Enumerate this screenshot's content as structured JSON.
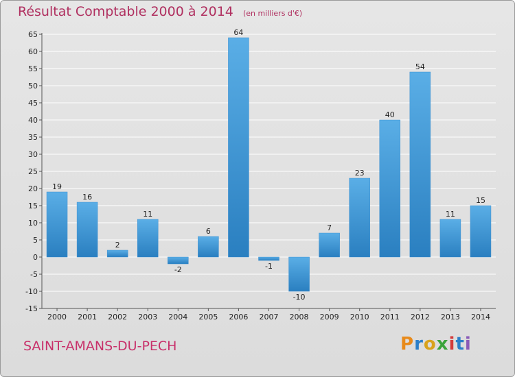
{
  "header": {
    "title": "Résultat Comptable 2000 à 2014",
    "unit": "(en milliers d'€)"
  },
  "footer": {
    "place": "SAINT-AMANS-DU-PECH",
    "logo_letters": [
      "P",
      "r",
      "o",
      "x",
      "i",
      "t",
      "i"
    ],
    "logo_colors": [
      "#e88a1a",
      "#2b7fc9",
      "#d8a21b",
      "#3aa33a",
      "#d33b3b",
      "#2b7fc9",
      "#8a5bb8"
    ]
  },
  "colors": {
    "bar_light": "#5aaee6",
    "bar_dark": "#2a7fc0",
    "title": "#b03060"
  },
  "chart_data": {
    "type": "bar",
    "categories": [
      "2000",
      "2001",
      "2002",
      "2003",
      "2004",
      "2005",
      "2006",
      "2007",
      "2008",
      "2009",
      "2010",
      "2011",
      "2012",
      "2013",
      "2014"
    ],
    "values": [
      19,
      16,
      2,
      11,
      -2,
      6,
      64,
      -1,
      -10,
      7,
      23,
      40,
      54,
      11,
      15
    ],
    "data_labels": [
      "19",
      "16",
      "2",
      "11",
      "-2",
      "6",
      "64",
      "-1",
      "-10",
      "7",
      "23",
      "40",
      "54",
      "11",
      "15"
    ],
    "y_ticks": [
      -15,
      -10,
      -5,
      0,
      5,
      10,
      15,
      20,
      25,
      30,
      35,
      40,
      45,
      50,
      55,
      60,
      65
    ],
    "y_tick_labels": [
      "-15",
      "-10",
      "-5",
      "0",
      "5",
      "10",
      "15",
      "20",
      "25",
      "30",
      "35",
      "40",
      "45",
      "50",
      "55",
      "60",
      "65"
    ],
    "ylim": [
      -15,
      65
    ],
    "grid": true,
    "xlabel": "",
    "ylabel": ""
  }
}
